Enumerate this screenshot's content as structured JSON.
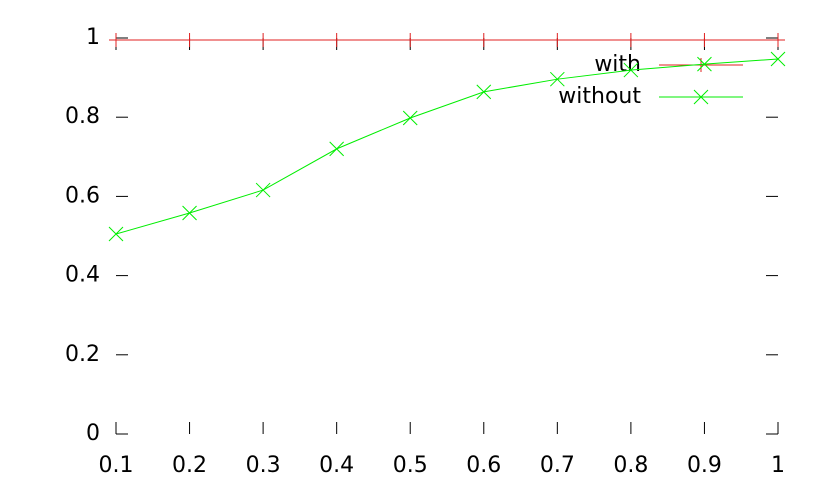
{
  "chart_data": {
    "type": "line",
    "x": [
      0.1,
      0.2,
      0.3,
      0.4,
      0.5,
      0.6,
      0.7,
      0.8,
      0.9,
      1
    ],
    "series": [
      {
        "name": "with",
        "color": "#e02020",
        "marker": "plus",
        "values": [
          0.995,
          0.995,
          0.995,
          0.995,
          0.995,
          0.995,
          0.995,
          0.995,
          0.995,
          0.995
        ]
      },
      {
        "name": "without",
        "color": "#00ee00",
        "marker": "cross",
        "values": [
          0.505,
          0.558,
          0.616,
          0.72,
          0.798,
          0.864,
          0.896,
          0.919,
          0.934,
          0.947
        ]
      }
    ],
    "xlim": [
      0.1,
      1
    ],
    "xticks": [
      0.1,
      0.2,
      0.3,
      0.4,
      0.5,
      0.6,
      0.7,
      0.8,
      0.9,
      1
    ],
    "ylim": [
      0,
      1
    ],
    "yticks": [
      0,
      0.2,
      0.4,
      0.6,
      0.8,
      1
    ],
    "legend": "top-right"
  }
}
